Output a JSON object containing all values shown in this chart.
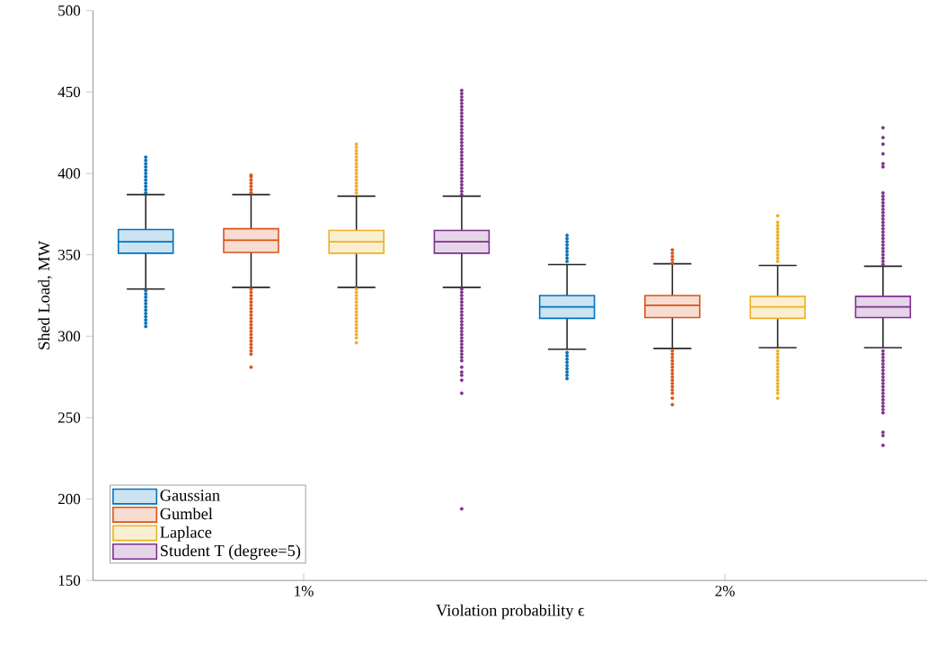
{
  "chart_data": {
    "type": "box",
    "xlabel": "Violation probability ϵ",
    "ylabel": "Shed Load, MW",
    "categories": [
      "1%",
      "2%"
    ],
    "ylim": [
      150,
      500
    ],
    "yticks": [
      150,
      200,
      250,
      300,
      350,
      400,
      450,
      500
    ],
    "legend": "bottom left",
    "series": [
      {
        "name": "Gaussian",
        "color": "#0072bd",
        "boxes": [
          {
            "low": 329,
            "q1": 351,
            "median": 358,
            "q3": 365.5,
            "high": 387,
            "outliers": [
              410,
              408,
              406,
              404,
              402,
              400,
              398,
              396,
              394,
              392,
              390,
              388,
              328,
              326,
              324,
              322,
              320,
              318,
              316,
              314,
              312,
              310,
              308,
              306
            ]
          },
          {
            "low": 292,
            "q1": 311,
            "median": 318,
            "q3": 325,
            "high": 344,
            "outliers": [
              362,
              360,
              358,
              356,
              354,
              352,
              350,
              348,
              346,
              290,
              288,
              286,
              284,
              282,
              280,
              278,
              276,
              274
            ]
          }
        ]
      },
      {
        "name": "Gumbel",
        "color": "#d95319",
        "boxes": [
          {
            "low": 330,
            "q1": 351.5,
            "median": 359,
            "q3": 366,
            "high": 387,
            "outliers": [
              399,
              398,
              396,
              394,
              392,
              390,
              388,
              329,
              327,
              325,
              323,
              321,
              319,
              317,
              315,
              313,
              311,
              309,
              307,
              305,
              303,
              301,
              299,
              297,
              295,
              293,
              291,
              289,
              281
            ]
          },
          {
            "low": 292.5,
            "q1": 311.5,
            "median": 319,
            "q3": 325,
            "high": 344.5,
            "outliers": [
              353,
              351,
              349,
              347,
              345,
              291,
              289,
              287,
              285,
              283,
              281,
              279,
              277,
              275,
              273,
              271,
              269,
              267,
              265,
              262,
              258
            ]
          }
        ]
      },
      {
        "name": "Laplace",
        "color": "#edb120",
        "boxes": [
          {
            "low": 330,
            "q1": 351,
            "median": 358,
            "q3": 365,
            "high": 386,
            "outliers": [
              418,
              416,
              414,
              412,
              410,
              408,
              406,
              404,
              402,
              400,
              398,
              396,
              394,
              392,
              390,
              388,
              329,
              327,
              325,
              323,
              321,
              319,
              317,
              315,
              313,
              311,
              309,
              307,
              305,
              303,
              301,
              299,
              296
            ]
          },
          {
            "low": 293,
            "q1": 311,
            "median": 318,
            "q3": 324.5,
            "high": 343.5,
            "outliers": [
              374,
              370,
              368,
              366,
              364,
              362,
              360,
              358,
              356,
              354,
              352,
              350,
              348,
              346,
              291,
              289,
              287,
              285,
              283,
              281,
              279,
              277,
              275,
              273,
              271,
              269,
              267,
              265,
              262
            ]
          }
        ]
      },
      {
        "name": "Student T (degree=5)",
        "color": "#7e2f8e",
        "boxes": [
          {
            "low": 330,
            "q1": 351,
            "median": 358,
            "q3": 365,
            "high": 386,
            "outliers": [
              451,
              449,
              447,
              445,
              443,
              441,
              439,
              437,
              435,
              433,
              431,
              429,
              427,
              425,
              423,
              421,
              419,
              417,
              415,
              413,
              411,
              409,
              407,
              405,
              403,
              401,
              399,
              397,
              395,
              393,
              391,
              389,
              387,
              329,
              327,
              325,
              323,
              321,
              319,
              317,
              315,
              313,
              311,
              309,
              307,
              305,
              303,
              301,
              299,
              297,
              295,
              293,
              291,
              289,
              287,
              285,
              281,
              278,
              276,
              273,
              265,
              194
            ]
          },
          {
            "low": 293,
            "q1": 311.5,
            "median": 318,
            "q3": 324.5,
            "high": 343,
            "outliers": [
              428,
              422,
              418,
              412,
              406,
              404,
              388,
              386,
              384,
              382,
              380,
              378,
              376,
              374,
              372,
              370,
              368,
              366,
              364,
              362,
              360,
              358,
              356,
              354,
              352,
              350,
              348,
              346,
              344,
              291,
              289,
              287,
              285,
              283,
              281,
              279,
              277,
              275,
              273,
              271,
              269,
              267,
              265,
              263,
              261,
              259,
              257,
              255,
              253,
              241,
              239,
              233
            ]
          }
        ]
      }
    ]
  }
}
